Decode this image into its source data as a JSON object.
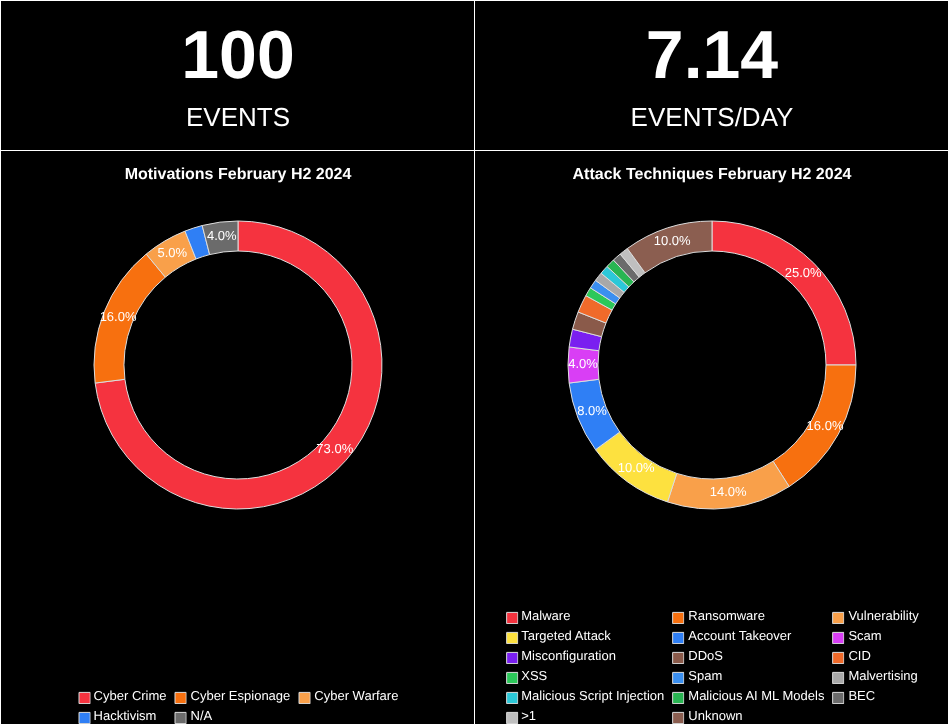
{
  "chart_data": [
    {
      "type": "other",
      "title": "100",
      "subtitle": "EVENTS"
    },
    {
      "type": "other",
      "title": "7.14",
      "subtitle": "EVENTS/DAY"
    },
    {
      "type": "donut",
      "title": "Motivations February H2 2024",
      "categories": [
        "Cyber Crime",
        "Cyber Espionage",
        "Cyber Warfare",
        "Hacktivism",
        "N/A"
      ],
      "values": [
        73,
        16,
        5,
        2,
        4
      ],
      "colors": [
        "#f5333f",
        "#f7700f",
        "#f9a04a",
        "#2f7ff5",
        "#6b6b6b"
      ],
      "value_labels": [
        "73.0%",
        "16.0%",
        "5.0%",
        null,
        "4.0%"
      ],
      "legend": "bottom"
    },
    {
      "type": "donut",
      "title": "Attack Techniques February H2 2024",
      "categories": [
        "Malware",
        "Ransomware",
        "Vulnerability",
        "Targeted Attack",
        "Account Takeover",
        "Scam",
        "Misconfiguration",
        "DDoS",
        "CID",
        "XSS",
        "Spam",
        "Malvertising",
        "Malicious Script Injection",
        "Malicious AI ML Models",
        "BEC",
        ">1",
        "Unknown"
      ],
      "values": [
        25,
        16,
        14,
        10,
        8,
        4,
        2,
        2,
        2,
        1,
        1,
        1,
        1,
        1,
        1,
        1,
        10
      ],
      "colors": [
        "#f5333f",
        "#f7700f",
        "#f9a04a",
        "#fde13f",
        "#2f7ff5",
        "#d93ef5",
        "#7a1ff0",
        "#8a5a4a",
        "#f06a2a",
        "#2cc85a",
        "#3a8ff0",
        "#a8a8a8",
        "#2cc8d8",
        "#29b552",
        "#6b6b6b",
        "#bfbfbf",
        "#8b5e50"
      ],
      "value_labels": [
        "25.0%",
        "16.0%",
        "14.0%",
        "10.0%",
        "8.0%",
        "4.0%",
        null,
        null,
        null,
        null,
        null,
        null,
        null,
        null,
        null,
        null,
        "10.0%"
      ],
      "legend": "bottom"
    }
  ]
}
